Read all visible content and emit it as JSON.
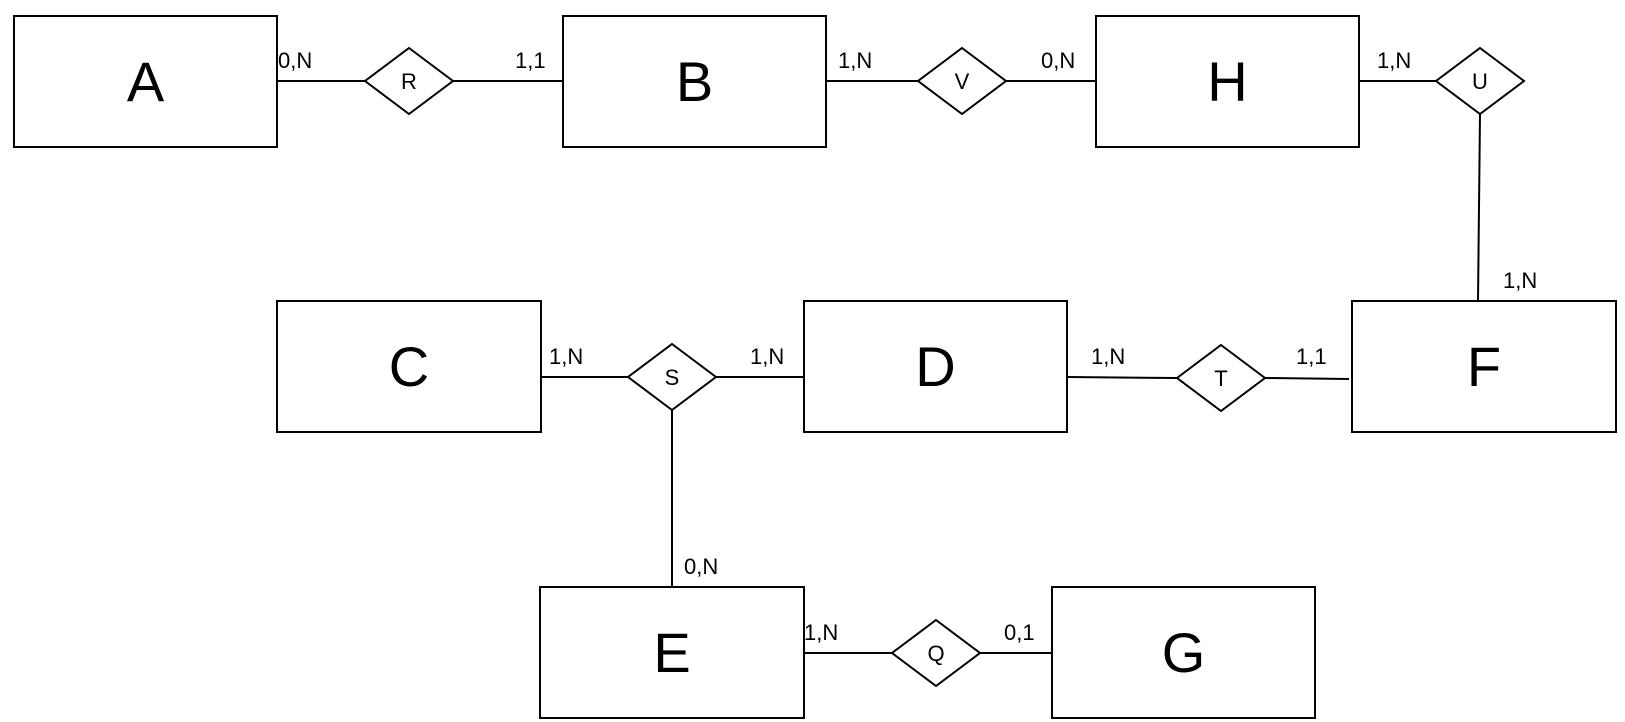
{
  "entities": {
    "A": "A",
    "B": "B",
    "H": "H",
    "C": "C",
    "D": "D",
    "F": "F",
    "E": "E",
    "G": "G"
  },
  "relationships": {
    "R": "R",
    "V": "V",
    "U": "U",
    "S": "S",
    "T": "T",
    "Q": "Q"
  },
  "cardinalities": {
    "A_R": "0,N",
    "B_R": "1,1",
    "B_V": "1,N",
    "H_V": "0,N",
    "H_U": "1,N",
    "F_U": "1,N",
    "C_S": "1,N",
    "D_S": "1,N",
    "E_S": "0,N",
    "D_T": "1,N",
    "F_T": "1,1",
    "E_Q": "1,N",
    "G_Q": "0,1"
  }
}
